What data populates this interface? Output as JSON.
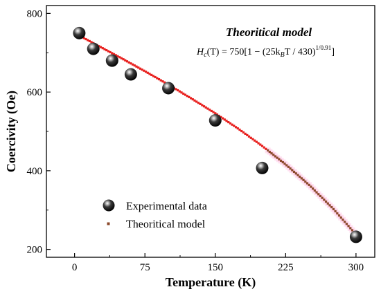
{
  "chart_data": {
    "type": "scatter",
    "xlabel": "Temperature (K)",
    "ylabel": "Coercivity (Oe)",
    "xlim": [
      -30,
      320
    ],
    "ylim": [
      180,
      820
    ],
    "x_ticks": [
      0,
      75,
      150,
      225,
      300
    ],
    "y_ticks": [
      200,
      400,
      600,
      800
    ],
    "x_tick_labels": [
      "0",
      "75",
      "150",
      "225",
      "300"
    ],
    "y_tick_labels": [
      "200",
      "400",
      "600",
      "800"
    ],
    "grid": false,
    "legend_position": "bottom-left",
    "series": [
      {
        "name": "Experimental data",
        "kind": "scatter",
        "marker": "black-sphere",
        "x": [
          5,
          20,
          40,
          60,
          100,
          150,
          200,
          300
        ],
        "y": [
          750,
          710,
          680,
          645,
          610,
          528,
          407,
          232
        ]
      },
      {
        "name": "Theoritical model",
        "kind": "dotted-line",
        "colors": {
          "start": "#e8201e",
          "end": "#8b4a2b",
          "halo": "#ffc8e6",
          "switch_x": 205
        },
        "x": [
          0,
          25,
          50,
          75,
          100,
          125,
          150,
          175,
          200,
          225,
          250,
          275,
          300
        ],
        "y": [
          750,
          718,
          686,
          653,
          619,
          583,
          546,
          506,
          463,
          416,
          364,
          305,
          238
        ]
      }
    ],
    "annotation": {
      "title": "Theoritical model",
      "formula": {
        "lhs_H": "H",
        "lhs_sub": "c",
        "lhs_rest": "(T) = 750[1 − (25k",
        "k_sub": "B",
        "mid": "T / 430)",
        "exp": "1/0.91",
        "end": "]"
      }
    }
  }
}
